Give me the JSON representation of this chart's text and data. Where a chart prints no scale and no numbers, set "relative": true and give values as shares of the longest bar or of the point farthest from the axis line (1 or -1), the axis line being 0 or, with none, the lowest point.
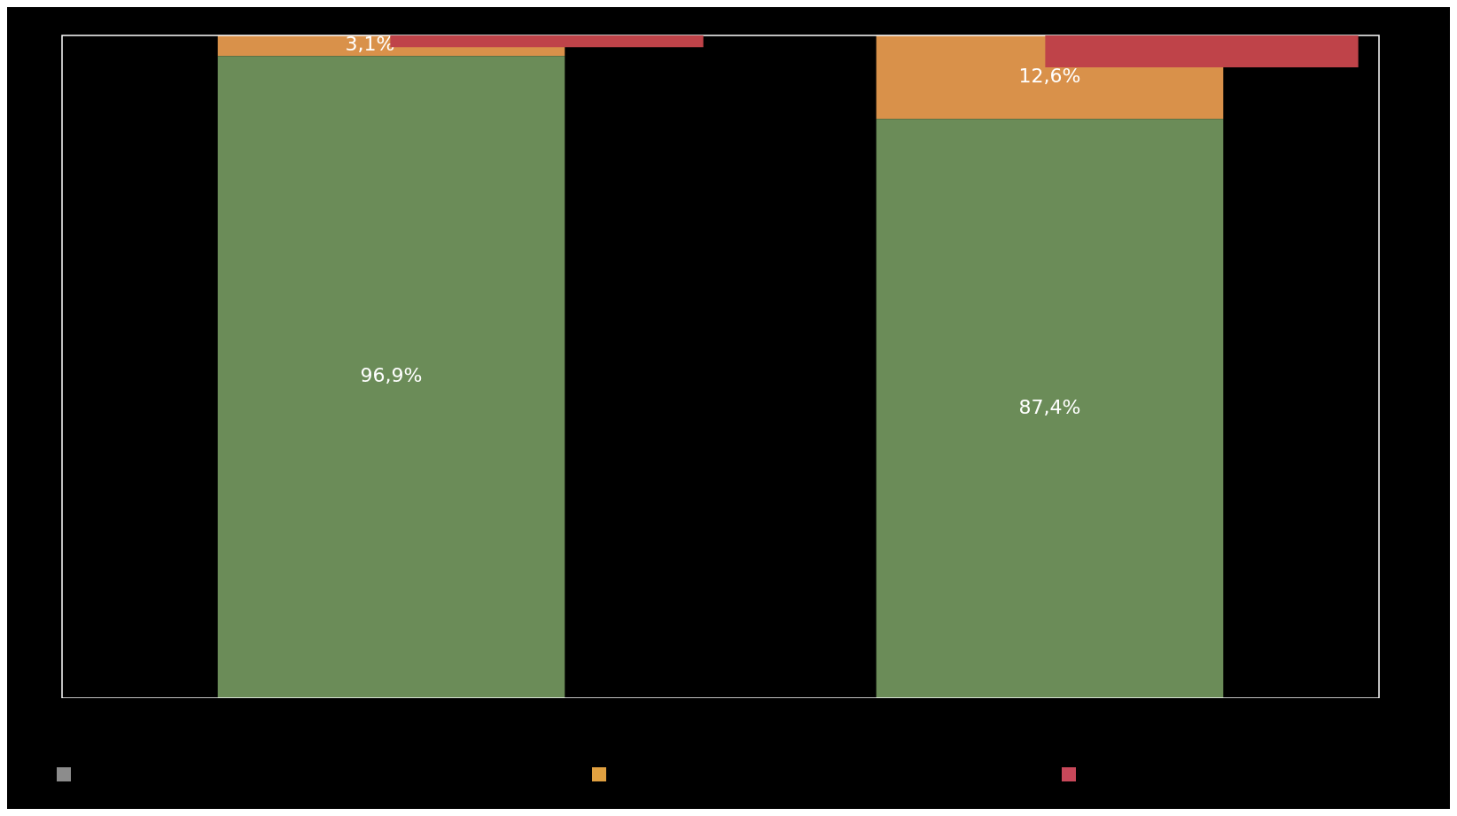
{
  "chart_data": [
    {
      "type": "bar",
      "stacked": true,
      "categories": [
        null,
        null
      ],
      "ylim": [
        0,
        100
      ],
      "tick_labels": false,
      "grid": false,
      "legend": false,
      "series": [
        {
          "color": "#6b8c58",
          "values": [
            96.9,
            87.4
          ],
          "value_labels": [
            "96,9%",
            "87,4%"
          ]
        },
        {
          "color": "#d9914a",
          "values": [
            3.1,
            12.6
          ],
          "value_labels": [
            "3,1%",
            "12,6%"
          ]
        }
      ]
    },
    {
      "type": "bar",
      "categories": [
        null,
        null
      ],
      "relative": true,
      "tick_labels": false,
      "grid": false,
      "legend": false,
      "series": [
        {
          "color": "#bf4349",
          "values": [
            -0.37,
            -1
          ]
        }
      ]
    }
  ]
}
